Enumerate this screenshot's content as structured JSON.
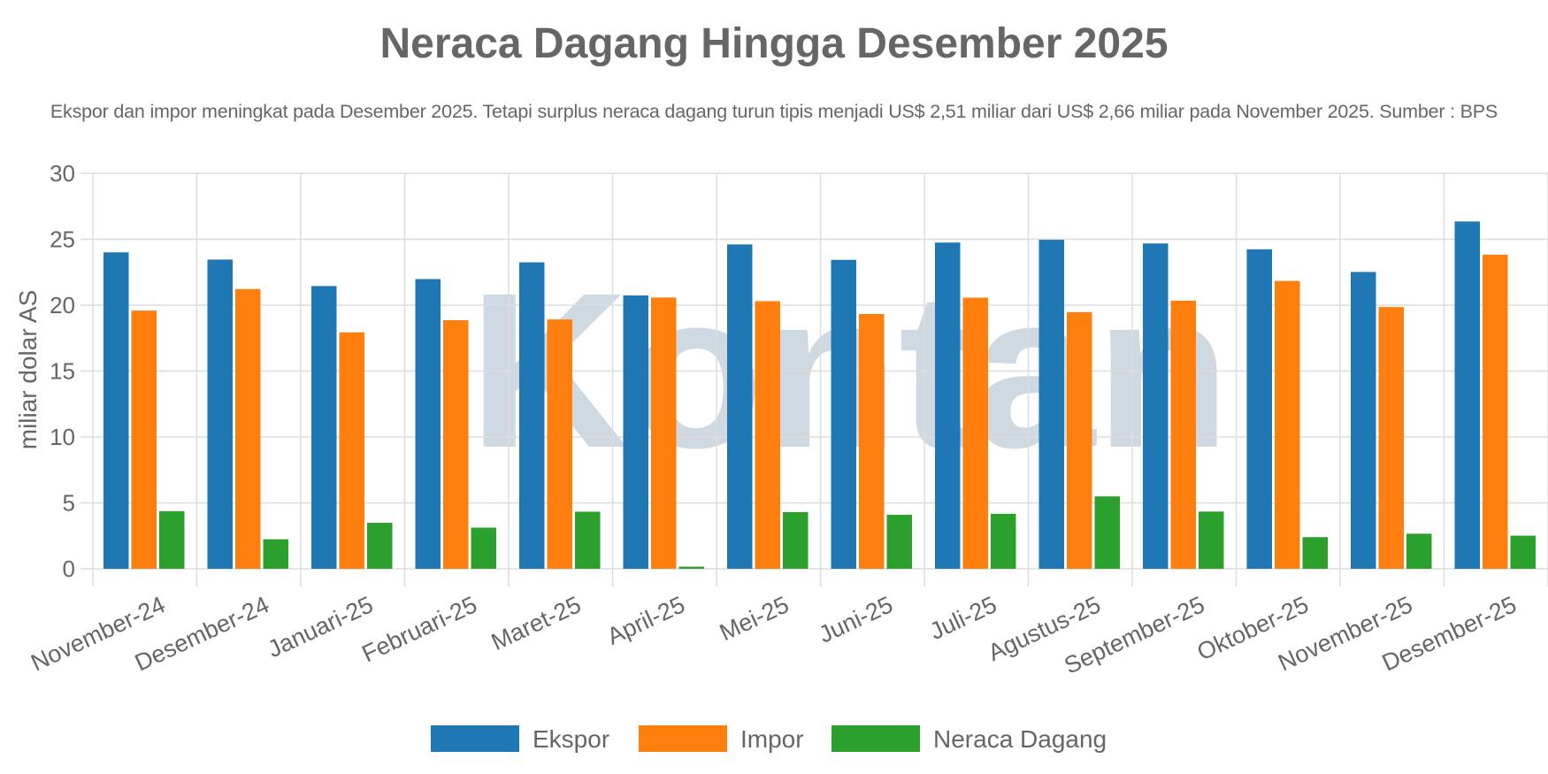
{
  "colors": {
    "ekspor": "#1f77b4",
    "impor": "#ff7f0e",
    "neraca": "#2ca02c",
    "grid": "#dddddd",
    "text": "#666666",
    "watermark": "#c6d3dc"
  },
  "watermark_text": "Kontan",
  "chart_data": {
    "type": "bar",
    "title": "Neraca Dagang Hingga Desember 2025",
    "subtitle": "Ekspor dan impor meningkat pada Desember 2025. Tetapi surplus neraca dagang turun tipis menjadi US$ 2,51 miliar dari US$ 2,66 miliar pada November 2025. Sumber : BPS",
    "xlabel": "",
    "ylabel": "miliar dolar AS",
    "ylim": [
      0,
      30
    ],
    "yticks": [
      0,
      5,
      10,
      15,
      20,
      25,
      30
    ],
    "grid": true,
    "legend": "bottom-center",
    "categories": [
      "November-24",
      "Desember-24",
      "Januari-25",
      "Februari-25",
      "Maret-25",
      "April-25",
      "Mei-25",
      "Juni-25",
      "Juli-25",
      "Agustus-25",
      "September-25",
      "Oktober-25",
      "November-25",
      "Desember-25"
    ],
    "series": [
      {
        "name": "Ekspor",
        "values": [
          24.01,
          23.46,
          21.45,
          21.98,
          23.25,
          20.74,
          24.61,
          23.44,
          24.75,
          24.96,
          24.68,
          24.24,
          22.52,
          26.35
        ]
      },
      {
        "name": "Impor",
        "values": [
          19.59,
          21.22,
          17.94,
          18.86,
          18.92,
          20.58,
          20.31,
          19.33,
          20.57,
          19.47,
          20.34,
          21.84,
          19.86,
          23.83
        ]
      },
      {
        "name": "Neraca Dagang",
        "values": [
          4.37,
          2.24,
          3.49,
          3.12,
          4.33,
          0.16,
          4.3,
          4.1,
          4.17,
          5.49,
          4.34,
          2.4,
          2.66,
          2.51
        ]
      }
    ]
  }
}
